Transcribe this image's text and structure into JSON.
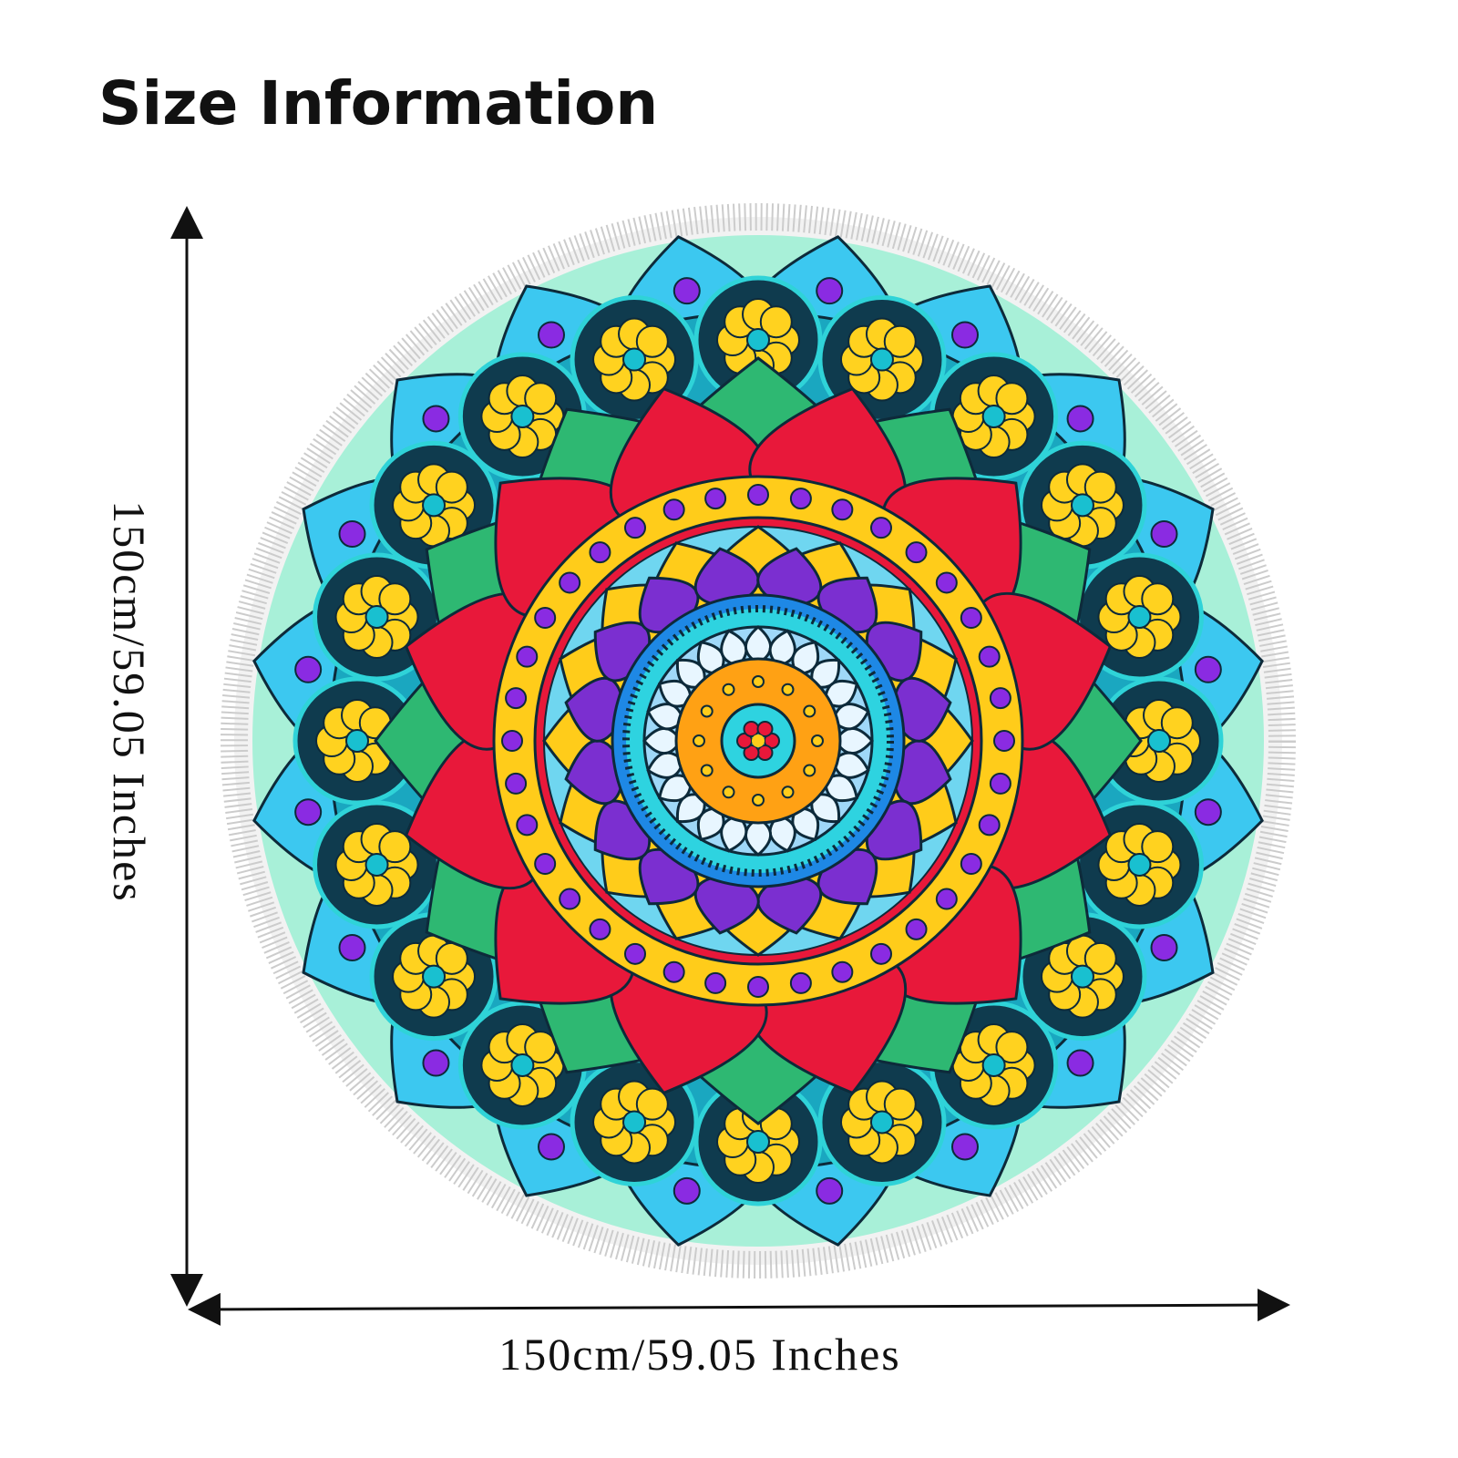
{
  "title": "Size Information",
  "dimensions": {
    "height": "150cm/59.05 Inches",
    "width": "150cm/59.05 Inches"
  }
}
